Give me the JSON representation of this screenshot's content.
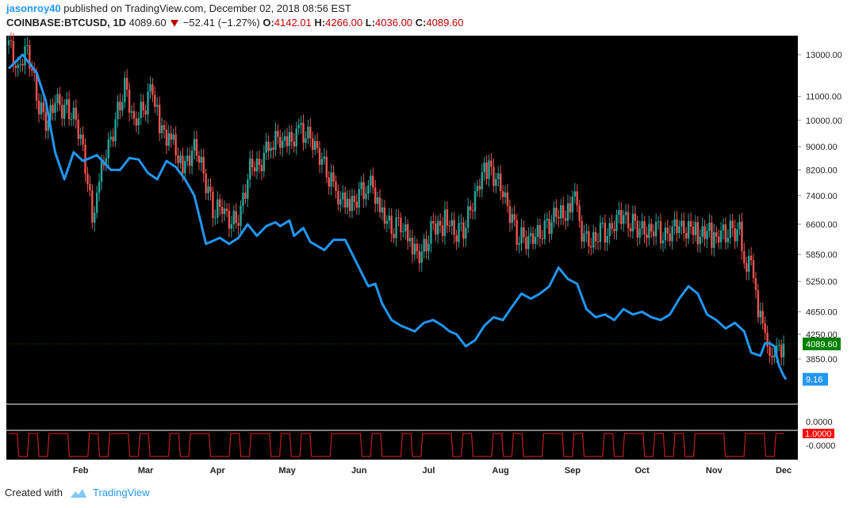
{
  "header": {
    "user": "jasonroy40",
    "published_text": "published on TradingView.com, December 02, 2018 08:56 EST",
    "symbol": "COINBASE:BTCUSD, 1D",
    "last": "4089.60",
    "change": "−52.41 (−1.27%)",
    "o_label": "O:",
    "o_value": "4142.01",
    "h_label": "H:",
    "h_value": "4266.00",
    "l_label": "L:",
    "l_value": "4036.00",
    "c_label": "C:",
    "c_value": "4089.60"
  },
  "footer": {
    "created_with": "Created with",
    "brand": "TradingView"
  },
  "colors": {
    "background": "#000000",
    "up": "#26a69a",
    "down": "#ef5350",
    "indicator": "#2196f3",
    "oscillator": "#b71c1c",
    "last_price_tag": "#008000",
    "axis_text": "#222222"
  },
  "chart_data": {
    "type": "line",
    "price_scale": "log",
    "price_axis_ticks": [
      "13000.00",
      "11000.00",
      "10000.00",
      "9000.00",
      "8200.00",
      "7400.00",
      "6600.00",
      "5850.00",
      "5250.00",
      "4650.00",
      "4250.00",
      "3850.00"
    ],
    "x_axis_ticks": [
      "Feb",
      "Mar",
      "Apr",
      "May",
      "Jun",
      "Jul",
      "Aug",
      "Sep",
      "Oct",
      "Nov",
      "Dec"
    ],
    "last_price_label": "4089.60",
    "indicator_label": "9.16",
    "lower_axis_ticks": [
      "0.0000",
      "-0.0000"
    ],
    "oscillator_label": "1.0000",
    "series": [
      {
        "type": "candlestick",
        "points": [
          [
            "2018-01-01",
            13500
          ],
          [
            "2018-01-05",
            12000
          ],
          [
            "2018-01-09",
            13200
          ],
          [
            "2018-01-13",
            11000
          ],
          [
            "2018-01-17",
            10000
          ],
          [
            "2018-01-21",
            11000
          ],
          [
            "2018-01-25",
            10500
          ],
          [
            "2018-01-29",
            10100
          ],
          [
            "2018-02-02",
            8800
          ],
          [
            "2018-02-06",
            6700
          ],
          [
            "2018-02-08",
            7800
          ],
          [
            "2018-02-12",
            8900
          ],
          [
            "2018-02-16",
            10000
          ],
          [
            "2018-02-20",
            11400
          ],
          [
            "2018-02-24",
            9700
          ],
          [
            "2018-02-28",
            10400
          ],
          [
            "2018-03-04",
            11500
          ],
          [
            "2018-03-07",
            9900
          ],
          [
            "2018-03-12",
            9300
          ],
          [
            "2018-03-18",
            8200
          ],
          [
            "2018-03-22",
            8900
          ],
          [
            "2018-03-26",
            8000
          ],
          [
            "2018-03-30",
            7000
          ],
          [
            "2018-04-03",
            7200
          ],
          [
            "2018-04-07",
            6700
          ],
          [
            "2018-04-11",
            6900
          ],
          [
            "2018-04-15",
            8200
          ],
          [
            "2018-04-19",
            8200
          ],
          [
            "2018-04-24",
            9200
          ],
          [
            "2018-04-28",
            9400
          ],
          [
            "2018-05-01",
            9250
          ],
          [
            "2018-05-06",
            9600
          ],
          [
            "2018-05-10",
            9300
          ],
          [
            "2018-05-14",
            8700
          ],
          [
            "2018-05-18",
            8100
          ],
          [
            "2018-05-23",
            7500
          ],
          [
            "2018-05-28",
            7200
          ],
          [
            "2018-06-01",
            7500
          ],
          [
            "2018-06-06",
            7650
          ],
          [
            "2018-06-11",
            6800
          ],
          [
            "2018-06-15",
            6400
          ],
          [
            "2018-06-19",
            6700
          ],
          [
            "2018-06-24",
            6100
          ],
          [
            "2018-06-28",
            5900
          ],
          [
            "2018-07-02",
            6400
          ],
          [
            "2018-07-08",
            6700
          ],
          [
            "2018-07-12",
            6300
          ],
          [
            "2018-07-16",
            6500
          ],
          [
            "2018-07-20",
            7300
          ],
          [
            "2018-07-24",
            8200
          ],
          [
            "2018-07-27",
            8200
          ],
          [
            "2018-07-31",
            7700
          ],
          [
            "2018-08-04",
            7000
          ],
          [
            "2018-08-08",
            6300
          ],
          [
            "2018-08-12",
            6300
          ],
          [
            "2018-08-16",
            6400
          ],
          [
            "2018-08-20",
            6500
          ],
          [
            "2018-08-24",
            6700
          ],
          [
            "2018-08-30",
            7000
          ],
          [
            "2018-09-03",
            7300
          ],
          [
            "2018-09-05",
            6500
          ],
          [
            "2018-09-09",
            6200
          ],
          [
            "2018-09-13",
            6500
          ],
          [
            "2018-09-17",
            6300
          ],
          [
            "2018-09-21",
            6750
          ],
          [
            "2018-09-25",
            6600
          ],
          [
            "2018-09-29",
            6600
          ],
          [
            "2018-10-03",
            6500
          ],
          [
            "2018-10-07",
            6600
          ],
          [
            "2018-10-11",
            6200
          ],
          [
            "2018-10-15",
            6450
          ],
          [
            "2018-10-19",
            6400
          ],
          [
            "2018-10-25",
            6400
          ],
          [
            "2018-10-31",
            6300
          ],
          [
            "2018-11-04",
            6450
          ],
          [
            "2018-11-08",
            6400
          ],
          [
            "2018-11-12",
            6350
          ],
          [
            "2018-11-14",
            5600
          ],
          [
            "2018-11-18",
            5550
          ],
          [
            "2018-11-20",
            4800
          ],
          [
            "2018-11-22",
            4500
          ],
          [
            "2018-11-24",
            3900
          ],
          [
            "2018-11-25",
            3700
          ],
          [
            "2018-11-26",
            3800
          ],
          [
            "2018-11-28",
            4200
          ],
          [
            "2018-11-30",
            4100
          ],
          [
            "2018-12-01",
            4200
          ],
          [
            "2018-12-02",
            4089.6
          ]
        ]
      },
      {
        "type": "line",
        "label": "9.16",
        "points": [
          [
            "2018-01-01",
            12300
          ],
          [
            "2018-01-07",
            13000
          ],
          [
            "2018-01-13",
            12100
          ],
          [
            "2018-01-17",
            10800
          ],
          [
            "2018-01-21",
            8800
          ],
          [
            "2018-01-25",
            7900
          ],
          [
            "2018-01-29",
            8800
          ],
          [
            "2018-02-02",
            8500
          ],
          [
            "2018-02-08",
            8700
          ],
          [
            "2018-02-14",
            8200
          ],
          [
            "2018-02-18",
            8200
          ],
          [
            "2018-02-22",
            8600
          ],
          [
            "2018-02-26",
            8550
          ],
          [
            "2018-03-02",
            8100
          ],
          [
            "2018-03-06",
            7900
          ],
          [
            "2018-03-10",
            8500
          ],
          [
            "2018-03-14",
            8300
          ],
          [
            "2018-03-18",
            7900
          ],
          [
            "2018-03-22",
            7400
          ],
          [
            "2018-03-25",
            6600
          ],
          [
            "2018-03-27",
            6100
          ],
          [
            "2018-04-02",
            6250
          ],
          [
            "2018-04-06",
            6100
          ],
          [
            "2018-04-10",
            6250
          ],
          [
            "2018-04-14",
            6600
          ],
          [
            "2018-04-18",
            6300
          ],
          [
            "2018-04-22",
            6550
          ],
          [
            "2018-04-26",
            6650
          ],
          [
            "2018-04-28",
            6550
          ],
          [
            "2018-05-02",
            6700
          ],
          [
            "2018-05-04",
            6300
          ],
          [
            "2018-05-08",
            6500
          ],
          [
            "2018-05-11",
            6150
          ],
          [
            "2018-05-17",
            5950
          ],
          [
            "2018-05-21",
            6200
          ],
          [
            "2018-05-26",
            6200
          ],
          [
            "2018-05-31",
            5650
          ],
          [
            "2018-06-05",
            5150
          ],
          [
            "2018-06-08",
            5200
          ],
          [
            "2018-06-11",
            4800
          ],
          [
            "2018-06-15",
            4500
          ],
          [
            "2018-06-19",
            4400
          ],
          [
            "2018-06-25",
            4300
          ],
          [
            "2018-06-29",
            4450
          ],
          [
            "2018-07-03",
            4500
          ],
          [
            "2018-07-07",
            4400
          ],
          [
            "2018-07-10",
            4300
          ],
          [
            "2018-07-13",
            4250
          ],
          [
            "2018-07-17",
            4050
          ],
          [
            "2018-07-21",
            4150
          ],
          [
            "2018-07-25",
            4400
          ],
          [
            "2018-07-29",
            4550
          ],
          [
            "2018-08-02",
            4500
          ],
          [
            "2018-08-06",
            4750
          ],
          [
            "2018-08-10",
            5000
          ],
          [
            "2018-08-14",
            4900
          ],
          [
            "2018-08-18",
            5000
          ],
          [
            "2018-08-22",
            5150
          ],
          [
            "2018-08-26",
            5550
          ],
          [
            "2018-08-30",
            5300
          ],
          [
            "2018-09-03",
            5200
          ],
          [
            "2018-09-07",
            4700
          ],
          [
            "2018-09-11",
            4550
          ],
          [
            "2018-09-15",
            4600
          ],
          [
            "2018-09-19",
            4500
          ],
          [
            "2018-09-23",
            4700
          ],
          [
            "2018-09-27",
            4600
          ],
          [
            "2018-10-01",
            4650
          ],
          [
            "2018-10-05",
            4550
          ],
          [
            "2018-10-09",
            4500
          ],
          [
            "2018-10-13",
            4600
          ],
          [
            "2018-10-17",
            4900
          ],
          [
            "2018-10-21",
            5150
          ],
          [
            "2018-10-25",
            5000
          ],
          [
            "2018-10-29",
            4600
          ],
          [
            "2018-11-02",
            4500
          ],
          [
            "2018-11-06",
            4350
          ],
          [
            "2018-11-10",
            4450
          ],
          [
            "2018-11-14",
            4300
          ],
          [
            "2018-11-17",
            3950
          ],
          [
            "2018-11-21",
            3900
          ],
          [
            "2018-11-23",
            4100
          ],
          [
            "2018-11-25",
            4100
          ],
          [
            "2018-11-27",
            4050
          ],
          [
            "2018-11-29",
            3750
          ],
          [
            "2018-12-01",
            3600
          ],
          [
            "2018-12-02",
            3550
          ]
        ]
      },
      {
        "type": "step",
        "label": "1.0000",
        "values": [
          1,
          0,
          1,
          0,
          1,
          1,
          0,
          0,
          1,
          0,
          1,
          1,
          0,
          1,
          0,
          0,
          1,
          0,
          1,
          1,
          0,
          0,
          1,
          0,
          1,
          1,
          0,
          1,
          0,
          1,
          0,
          0,
          1,
          1,
          1,
          0,
          1,
          0,
          0,
          1,
          0,
          1,
          1,
          1,
          0,
          1,
          0,
          0,
          1,
          0,
          1,
          0,
          0,
          1,
          1,
          0,
          1,
          0,
          0,
          1,
          0,
          1,
          1,
          0,
          1,
          0,
          1,
          0,
          1,
          1,
          1,
          0,
          0,
          1,
          1,
          0,
          1
        ]
      }
    ]
  }
}
